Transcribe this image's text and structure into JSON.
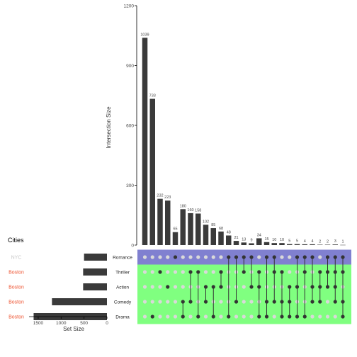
{
  "chart_data": {
    "type": "bar",
    "subtype": "upset",
    "ylabel_intersections": "Intersection Size",
    "xlabel_setsize": "Set Size",
    "metadata_header": "Cities",
    "intersection_ylim": [
      0,
      1200
    ],
    "intersection_yticks": [
      "0",
      "300",
      "600",
      "900",
      "1200"
    ],
    "set_size_xlim": [
      0,
      1700
    ],
    "set_size_xticks": [
      "1500",
      "1000",
      "500",
      "0"
    ],
    "sets": [
      {
        "name": "Romance",
        "size": 500,
        "city": "NYC",
        "city_color": "#c8c8c8",
        "row_color": "#8080d0"
      },
      {
        "name": "Thriller",
        "size": 520,
        "city": "Boston",
        "city_color": "#ee5533",
        "row_color": "#80ff80"
      },
      {
        "name": "Action",
        "size": 520,
        "city": "Boston",
        "city_color": "#ee5533",
        "row_color": "#80ff80"
      },
      {
        "name": "Comedy",
        "size": 1200,
        "city": "Boston",
        "city_color": "#ee5533",
        "row_color": "#80ff80"
      },
      {
        "name": "Drama",
        "size": 1600,
        "city": "Boston",
        "city_color": "#ee5533",
        "row_color": "#80ff80"
      }
    ],
    "intersections": [
      {
        "size": 1039,
        "label": "1039",
        "members": []
      },
      {
        "size": 733,
        "label": "733",
        "members": [
          "Drama"
        ]
      },
      {
        "size": 232,
        "label": "232",
        "members": [
          "Thriller"
        ]
      },
      {
        "size": 223,
        "label": "223",
        "members": [
          "Action"
        ]
      },
      {
        "size": 65,
        "label": "65",
        "members": [
          "Romance"
        ]
      },
      {
        "size": 180,
        "label": "180",
        "members": [
          "Comedy",
          "Drama"
        ]
      },
      {
        "size": 160,
        "label": "160",
        "members": [
          "Thriller",
          "Comedy"
        ]
      },
      {
        "size": 158,
        "label": "158",
        "members": [
          "Thriller",
          "Drama"
        ]
      },
      {
        "size": 102,
        "label": "102",
        "members": [
          "Action",
          "Comedy"
        ]
      },
      {
        "size": 85,
        "label": "85",
        "members": [
          "Action",
          "Drama"
        ]
      },
      {
        "size": 68,
        "label": "68",
        "members": [
          "Thriller",
          "Action"
        ]
      },
      {
        "size": 48,
        "label": "48",
        "members": [
          "Romance",
          "Drama"
        ]
      },
      {
        "size": 21,
        "label": "21",
        "members": [
          "Romance",
          "Comedy"
        ]
      },
      {
        "size": 13,
        "label": "13",
        "members": [
          "Romance",
          "Thriller"
        ]
      },
      {
        "size": 9,
        "label": "9",
        "members": [
          "Romance",
          "Action"
        ]
      },
      {
        "size": 34,
        "label": "34",
        "members": [
          "Thriller",
          "Action",
          "Drama"
        ]
      },
      {
        "size": 15,
        "label": "15",
        "members": [
          "Romance",
          "Comedy",
          "Drama"
        ]
      },
      {
        "size": 10,
        "label": "10",
        "members": [
          "Romance",
          "Thriller",
          "Comedy"
        ]
      },
      {
        "size": 10,
        "label": "10",
        "members": [
          "Thriller",
          "Comedy",
          "Drama"
        ]
      },
      {
        "size": 5,
        "label": "5",
        "members": [
          "Action",
          "Comedy",
          "Drama"
        ]
      },
      {
        "size": 5,
        "label": "5",
        "members": [
          "Romance",
          "Action",
          "Drama"
        ]
      },
      {
        "size": 4,
        "label": "4",
        "members": [
          "Romance",
          "Thriller",
          "Drama"
        ]
      },
      {
        "size": 4,
        "label": "4",
        "members": [
          "Romance",
          "Action",
          "Comedy"
        ]
      },
      {
        "size": 2,
        "label": "2",
        "members": [
          "Thriller",
          "Action",
          "Comedy"
        ]
      },
      {
        "size": 2,
        "label": "2",
        "members": [
          "Romance",
          "Thriller",
          "Action"
        ]
      },
      {
        "size": 3,
        "label": "3",
        "members": [
          "Romance",
          "Thriller",
          "Action",
          "Comedy"
        ]
      },
      {
        "size": 1,
        "label": "1",
        "members": [
          "Romance",
          "Thriller",
          "Comedy",
          "Drama"
        ]
      }
    ],
    "colors": {
      "bar": "#3a3a3a",
      "dot_active": "#333333",
      "dot_inactive": "#d9d9d9"
    }
  }
}
